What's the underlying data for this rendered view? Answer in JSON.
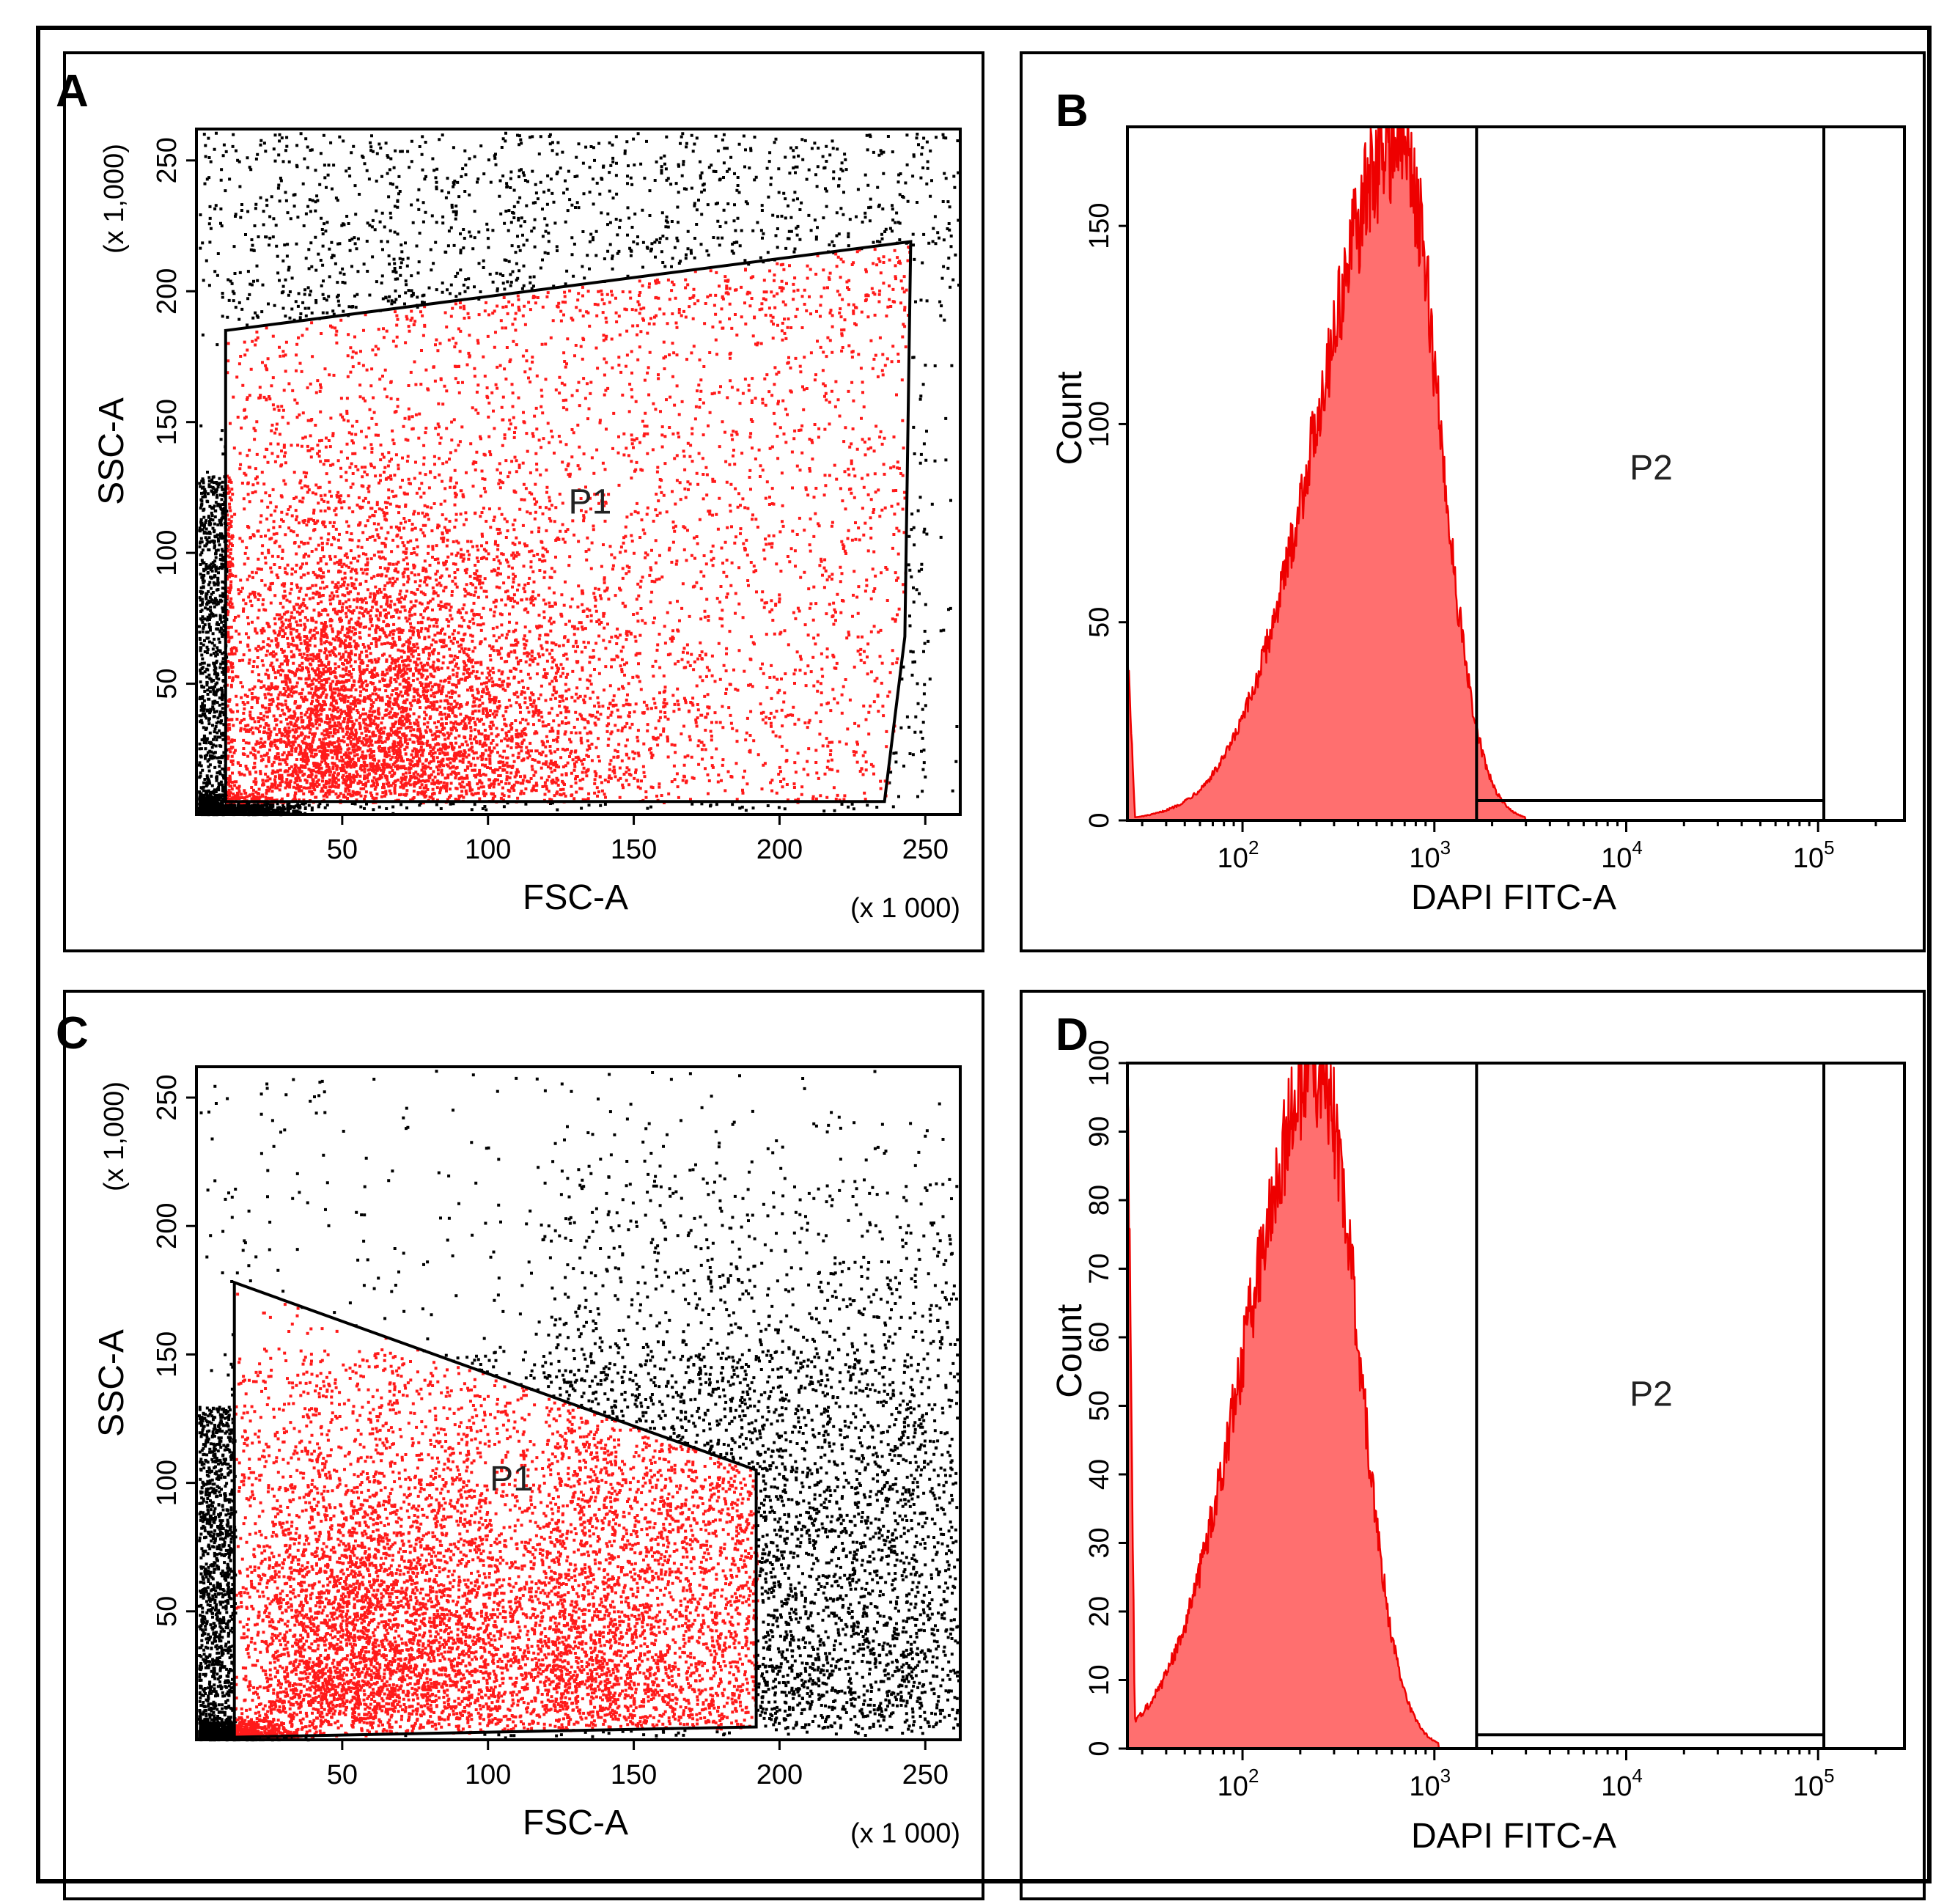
{
  "figure": {
    "panels": [
      "A",
      "B",
      "C",
      "D"
    ]
  },
  "colors": {
    "gated_events": "#ff1a1a",
    "ungated_events": "#000000",
    "histogram_fill": "#ff6f6f",
    "histogram_line": "#ee0000",
    "frame": "#000000"
  },
  "chart_data": [
    {
      "panel": "A",
      "type": "scatter",
      "xlabel": "FSC-A",
      "ylabel": "SSC-A",
      "x_multiplier": "(x 1 000)",
      "y_multiplier": "(x 1,000)",
      "xlim": [
        0,
        262
      ],
      "ylim": [
        0,
        262
      ],
      "x_ticks": [
        50,
        100,
        150,
        200,
        250
      ],
      "y_ticks": [
        50,
        100,
        150,
        200,
        250
      ],
      "gate": {
        "name": "P1",
        "label_at": [
          135,
          115
        ],
        "vertices": [
          [
            10,
            185
          ],
          [
            245,
            219
          ],
          [
            243,
            68
          ],
          [
            236,
            5
          ],
          [
            10,
            5
          ]
        ]
      }
    },
    {
      "panel": "B",
      "type": "histogram",
      "xlabel": "DAPI FITC-A",
      "ylabel": "Count",
      "x_scale": "log",
      "x_range_log10": [
        1.4,
        5.45
      ],
      "ylim": [
        0,
        175
      ],
      "y_ticks": [
        0,
        50,
        100,
        150
      ],
      "x_ticks": [
        {
          "base": "10",
          "exp": "2",
          "log10": 2
        },
        {
          "base": "10",
          "exp": "3",
          "log10": 3
        },
        {
          "base": "10",
          "exp": "4",
          "log10": 4
        },
        {
          "base": "10",
          "exp": "5",
          "log10": 5
        }
      ],
      "peak": {
        "log10": 2.82,
        "count": 172
      },
      "gate": {
        "name": "P2",
        "x_log10": [
          3.22,
          5.03
        ],
        "label_at": {
          "log10": 4.13,
          "count": 86
        },
        "floor_count": 5
      }
    },
    {
      "panel": "C",
      "type": "scatter",
      "xlabel": "FSC-A",
      "ylabel": "SSC-A",
      "x_multiplier": "(x 1 000)",
      "y_multiplier": "(x 1,000)",
      "xlim": [
        0,
        262
      ],
      "ylim": [
        0,
        262
      ],
      "x_ticks": [
        50,
        100,
        150,
        200,
        250
      ],
      "y_ticks": [
        50,
        100,
        150,
        200,
        250
      ],
      "gate": {
        "name": "P1",
        "label_at": [
          108,
          97
        ],
        "vertices": [
          [
            13,
            178
          ],
          [
            192,
            105
          ],
          [
            192,
            5
          ],
          [
            13,
            1
          ]
        ]
      }
    },
    {
      "panel": "D",
      "type": "histogram",
      "xlabel": "DAPI FITC-A",
      "ylabel": "Count",
      "x_scale": "log",
      "x_range_log10": [
        1.4,
        5.45
      ],
      "ylim": [
        0,
        100
      ],
      "y_ticks": [
        0,
        10,
        20,
        30,
        40,
        50,
        60,
        70,
        80,
        90,
        100
      ],
      "x_ticks": [
        {
          "base": "10",
          "exp": "2",
          "log10": 2
        },
        {
          "base": "10",
          "exp": "3",
          "log10": 3
        },
        {
          "base": "10",
          "exp": "4",
          "log10": 4
        },
        {
          "base": "10",
          "exp": "5",
          "log10": 5
        }
      ],
      "peak": {
        "log10": 2.4,
        "count": 99
      },
      "gate": {
        "name": "P2",
        "x_log10": [
          3.22,
          5.03
        ],
        "label_at": {
          "log10": 4.13,
          "count": 50
        },
        "floor_count": 2
      }
    }
  ]
}
